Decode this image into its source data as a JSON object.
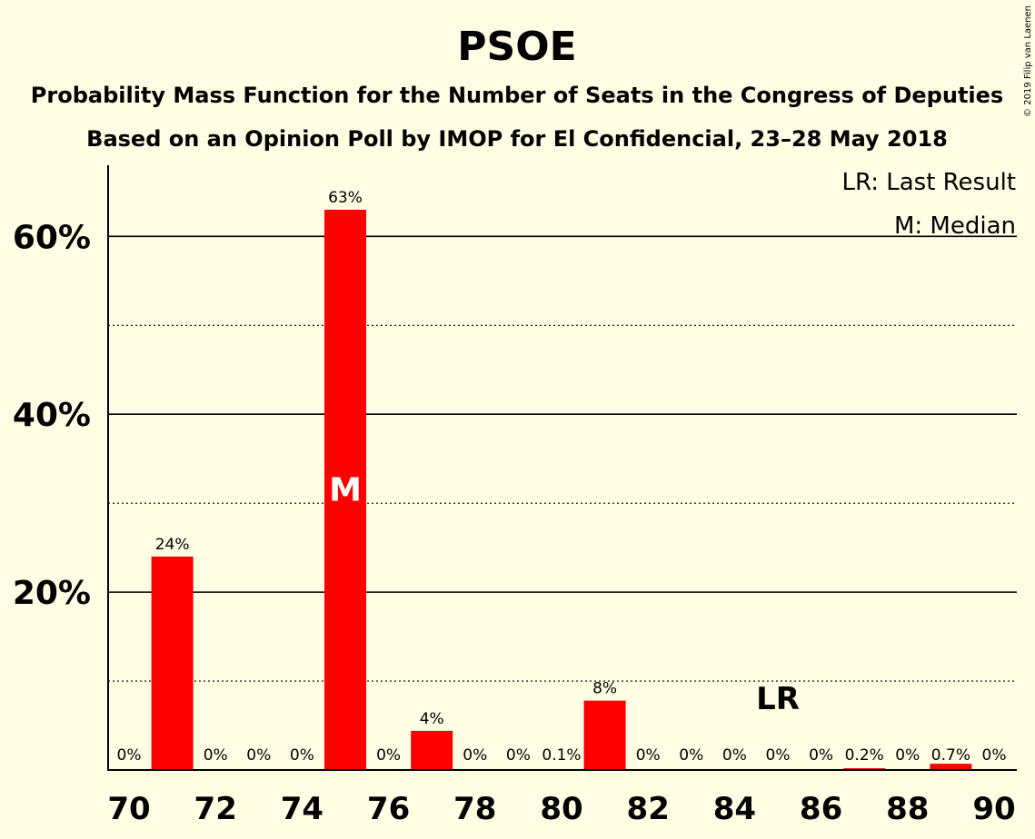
{
  "copyright": "© 2019 Filip van Laenen",
  "chart_data": {
    "type": "bar",
    "title": "PSOE",
    "subtitle_1": "Probability Mass Function for the Number of Seats in the Congress of Deputies",
    "subtitle_2": "Based on an Opinion Poll by IMOP for El Confidencial, 23–28 May 2018",
    "xlabel": "",
    "ylabel": "",
    "categories": [
      70,
      71,
      72,
      73,
      74,
      75,
      76,
      77,
      78,
      79,
      80,
      81,
      82,
      83,
      84,
      85,
      86,
      87,
      88,
      89,
      90
    ],
    "values": [
      0,
      24,
      0,
      0,
      0,
      63,
      0,
      4.4,
      0,
      0,
      0.1,
      7.8,
      0,
      0,
      0,
      0,
      0,
      0.2,
      0,
      0.7,
      0
    ],
    "value_labels": [
      "0%",
      "24%",
      "0%",
      "0%",
      "0%",
      "63%",
      "0%",
      "4%",
      "0%",
      "0%",
      "0.1%",
      "8%",
      "0%",
      "0%",
      "0%",
      "0%",
      "0%",
      "0.2%",
      "0%",
      "0.7%",
      "0%"
    ],
    "x_tick_values": [
      70,
      72,
      74,
      76,
      78,
      80,
      82,
      84,
      86,
      88,
      90
    ],
    "x_tick_labels": [
      "70",
      "72",
      "74",
      "76",
      "78",
      "80",
      "82",
      "84",
      "86",
      "88",
      "90"
    ],
    "y_tick_values": [
      20,
      40,
      60
    ],
    "y_tick_labels": [
      "20%",
      "40%",
      "60%"
    ],
    "y_minor_gridlines": [
      10,
      30,
      50
    ],
    "ylim": [
      0,
      68
    ],
    "median_seat": 75,
    "median_marker": "M",
    "last_result_seat": 85,
    "last_result_marker": "LR",
    "legend": {
      "lr": "LR: Last Result",
      "m": "M: Median",
      "placement": "top-right"
    },
    "colors": {
      "bar": "#FF0000",
      "background": "#FFFDE4",
      "text": "#000000",
      "median_marker": "#FFFFFF"
    },
    "grid": true
  }
}
